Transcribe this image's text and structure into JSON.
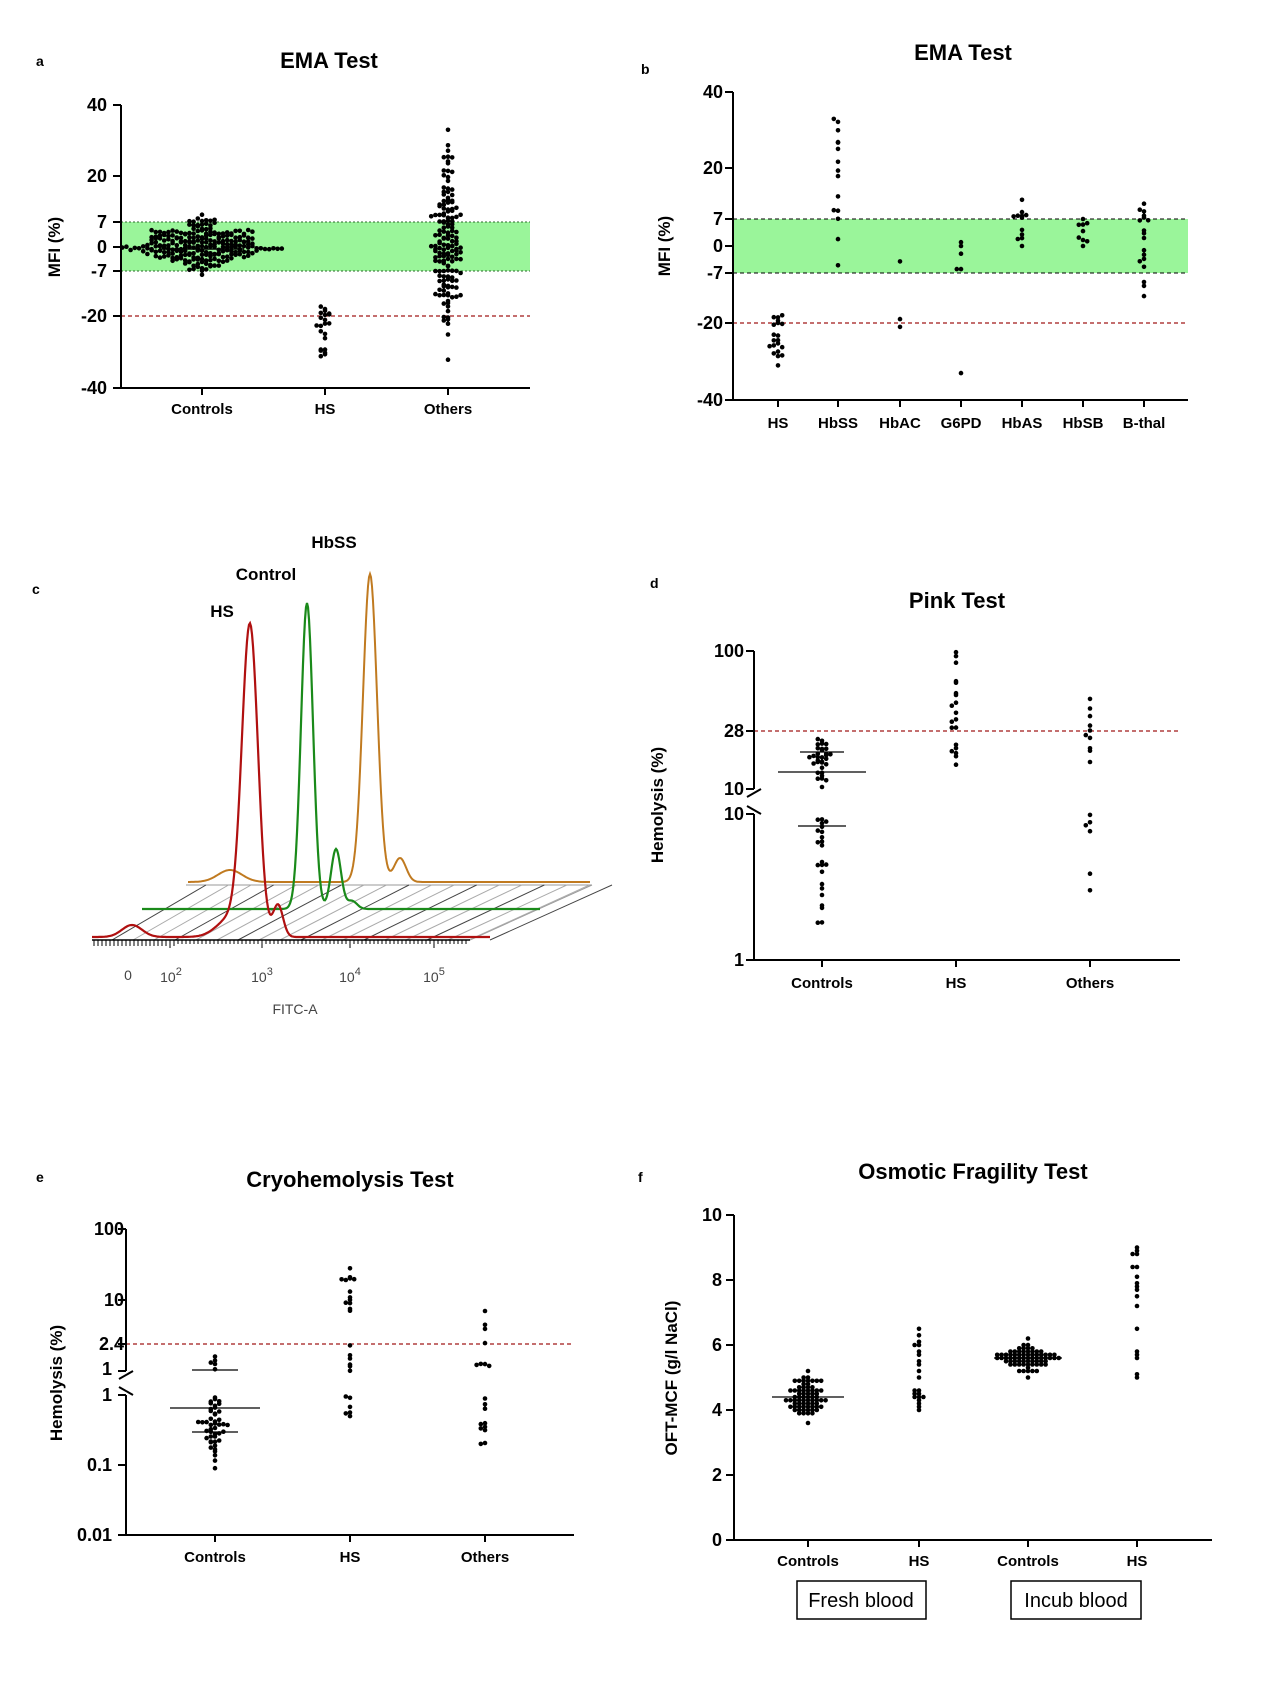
{
  "panels": {
    "a": {
      "letter": "a",
      "title": "EMA Test"
    },
    "b": {
      "letter": "b",
      "title": "EMA Test"
    },
    "c": {
      "letter": "c"
    },
    "d": {
      "letter": "d",
      "title": "Pink Test"
    },
    "e": {
      "letter": "e",
      "title": "Cryohemolysis Test"
    },
    "f": {
      "letter": "f",
      "title": "Osmotic Fragility Test"
    }
  },
  "colors": {
    "band": "#9af59a",
    "cutoff": "#a01818",
    "hs": "#b01010",
    "control": "#1a8a1a",
    "hbss": "#c07a20"
  },
  "chart_data": [
    {
      "panel": "a",
      "type": "scatter",
      "title": "EMA Test",
      "ylabel": "MFI (%)",
      "ylim": [
        -40,
        40
      ],
      "yticks": [
        "40",
        "20",
        "7",
        "0",
        "-7",
        "-20",
        "-40"
      ],
      "categories": [
        "Controls",
        "HS",
        "Others"
      ],
      "normal_band": [
        -7,
        7
      ],
      "cutoff": -20,
      "groups": [
        {
          "name": "Controls",
          "n": 240,
          "range": [
            -8,
            9
          ],
          "median": 0
        },
        {
          "name": "HS",
          "n": 20,
          "range": [
            -31,
            -17
          ]
        },
        {
          "name": "Others",
          "n": 150,
          "range": [
            -32,
            33
          ]
        }
      ]
    },
    {
      "panel": "b",
      "type": "scatter",
      "title": "EMA Test",
      "ylabel": "MFI (%)",
      "ylim": [
        -40,
        40
      ],
      "yticks": [
        "40",
        "20",
        "7",
        "0",
        "-7",
        "-20",
        "-40"
      ],
      "categories": [
        "HS",
        "HbSS",
        "HbAC",
        "G6PD",
        "HbAS",
        "HbSB",
        "B-thal"
      ],
      "normal_band": [
        -7,
        7
      ],
      "cutoff": -20,
      "groups": [
        {
          "name": "HS",
          "n": 20,
          "range": [
            -31,
            -18
          ]
        },
        {
          "name": "HbSS",
          "n": 15,
          "range": [
            -5,
            33
          ]
        },
        {
          "name": "HbAC",
          "n": 3,
          "values": [
            -4,
            -19,
            -21
          ]
        },
        {
          "name": "G6PD",
          "n": 6,
          "values": [
            1,
            0,
            -2,
            -6,
            -6,
            -33
          ]
        },
        {
          "name": "HbAS",
          "n": 12,
          "range": [
            0,
            12
          ]
        },
        {
          "name": "HbSB",
          "n": 9,
          "range": [
            0,
            7
          ]
        },
        {
          "name": "B-thal",
          "n": 18,
          "range": [
            -13,
            11
          ]
        }
      ]
    },
    {
      "panel": "c",
      "type": "line",
      "xlabel": "FITC-A",
      "xticks": [
        "0",
        "10^2",
        "10^3",
        "10^4",
        "10^5"
      ],
      "series": [
        {
          "name": "HS"
        },
        {
          "name": "Control"
        },
        {
          "name": "HbSS"
        }
      ]
    },
    {
      "panel": "d",
      "type": "scatter",
      "title": "Pink Test",
      "ylabel": "Hemolysis (%)",
      "yscale": "log, split axis",
      "yticks_upper": [
        "100",
        "28",
        "10"
      ],
      "yticks_lower": [
        "10",
        "1"
      ],
      "categories": [
        "Controls",
        "HS",
        "Others"
      ],
      "cutoff": 28,
      "groups": [
        {
          "name": "Controls",
          "n": 55,
          "range": [
            1.8,
            23
          ],
          "median_upper": 15.5,
          "median_lower": 6.5
        },
        {
          "name": "HS",
          "n": 20,
          "range": [
            15,
            98
          ]
        },
        {
          "name": "Others",
          "n": 16,
          "range": [
            3,
            45
          ]
        }
      ]
    },
    {
      "panel": "e",
      "type": "scatter",
      "title": "Cryohemolysis Test",
      "ylabel": "Hemolysis (%)",
      "yscale": "log, split axis",
      "yticks": [
        "100",
        "10",
        "2.4",
        "1",
        "1",
        "0.1",
        "0.01"
      ],
      "categories": [
        "Controls",
        "HS",
        "Others"
      ],
      "cutoff": 2.4,
      "groups": [
        {
          "name": "Controls",
          "n": 50,
          "range": [
            0.09,
            1.6
          ],
          "median": 0.6
        },
        {
          "name": "HS",
          "n": 25,
          "range": [
            0.5,
            28
          ]
        },
        {
          "name": "Others",
          "n": 18,
          "range": [
            0.2,
            7
          ]
        }
      ]
    },
    {
      "panel": "f",
      "type": "scatter",
      "title": "Osmotic Fragility Test",
      "ylabel": "OFT-MCF (g/l NaCl)",
      "ylim": [
        0,
        10
      ],
      "yticks": [
        "10",
        "8",
        "6",
        "4",
        "2",
        "0"
      ],
      "categories": [
        "Controls",
        "HS",
        "Controls",
        "HS"
      ],
      "category_groups": [
        "Fresh blood",
        "Incub blood"
      ],
      "groups": [
        {
          "name": "Controls",
          "condition": "Fresh blood",
          "n": 70,
          "range": [
            3.6,
            5.2
          ],
          "median": 4.4
        },
        {
          "name": "HS",
          "condition": "Fresh blood",
          "n": 22,
          "range": [
            4.0,
            6.5
          ]
        },
        {
          "name": "Controls",
          "condition": "Incub blood",
          "n": 70,
          "range": [
            5.0,
            6.2
          ],
          "median": 5.6
        },
        {
          "name": "HS",
          "condition": "Incub blood",
          "n": 18,
          "range": [
            5.0,
            9.0
          ]
        }
      ]
    }
  ]
}
